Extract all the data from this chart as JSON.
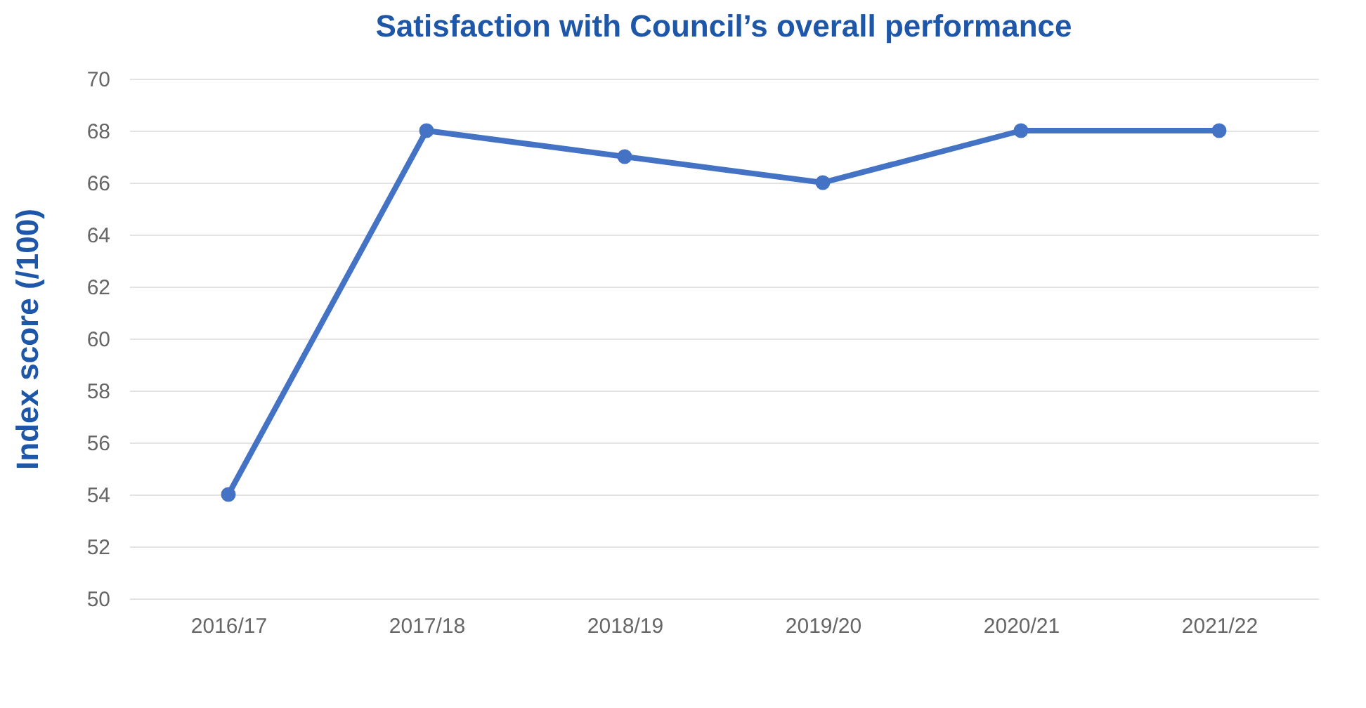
{
  "chart_data": {
    "type": "line",
    "title": "Satisfaction with Council’s overall performance",
    "ylabel": "Index score (/100)",
    "categories": [
      "2016/17",
      "2017/18",
      "2018/19",
      "2019/20",
      "2020/21",
      "2021/22"
    ],
    "series": [
      {
        "color": "#4472c4",
        "values": [
          54,
          68,
          67,
          66,
          68,
          68
        ]
      }
    ],
    "ylim": [
      50,
      70
    ],
    "yticks": [
      50,
      52,
      54,
      56,
      58,
      60,
      62,
      64,
      66,
      68,
      70
    ],
    "grid": "y",
    "marker": "circle",
    "line_style": "solid"
  }
}
